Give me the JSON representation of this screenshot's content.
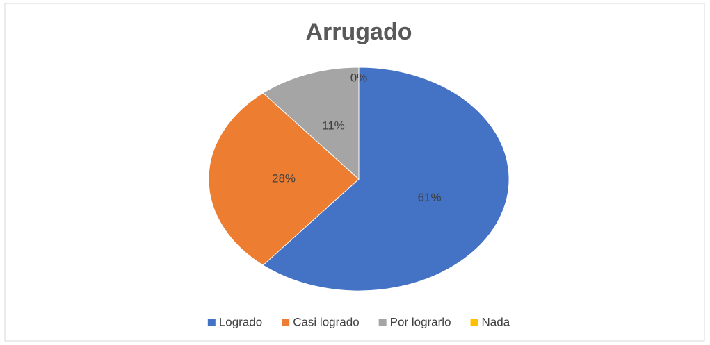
{
  "chart_data": {
    "type": "pie",
    "title": "Arrugado",
    "categories": [
      "Logrado",
      "Casi logrado",
      "Por lograrlo",
      "Nada"
    ],
    "values": [
      61,
      28,
      11,
      0
    ],
    "value_labels": [
      "61%",
      "28%",
      "11%",
      "0%"
    ],
    "colors": [
      "#4472c4",
      "#ed7d31",
      "#a5a5a5",
      "#ffc000"
    ],
    "legend": "bottom"
  }
}
